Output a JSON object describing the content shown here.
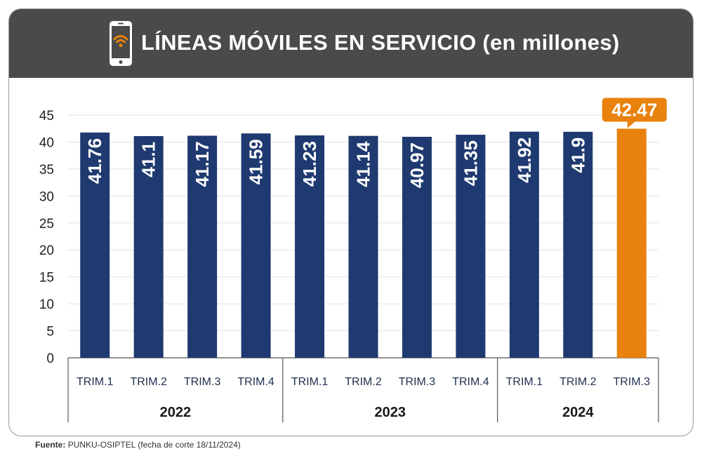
{
  "title": "LÍNEAS MÓVILES EN SERVICIO (en millones)",
  "footer": {
    "source_label": "Fuente:",
    "source_text": "PUNKU-OSIPTEL (fecha de corte 18/11/2024)"
  },
  "colors": {
    "bar": "#1f3a70",
    "highlight": "#e8820c",
    "header": "#4a4a4a"
  },
  "icon": "smartphone-wifi-icon",
  "chart_data": {
    "type": "bar",
    "title": "LÍNEAS MÓVILES EN SERVICIO (en millones)",
    "xlabel": "",
    "ylabel": "",
    "ylim": [
      0,
      45
    ],
    "yticks": [
      0,
      5,
      10,
      15,
      20,
      25,
      30,
      35,
      40,
      45
    ],
    "grid": true,
    "categories": [
      "TRIM.1",
      "TRIM.2",
      "TRIM.3",
      "TRIM.4",
      "TRIM.1",
      "TRIM.2",
      "TRIM.3",
      "TRIM.4",
      "TRIM.1",
      "TRIM.2",
      "TRIM.3"
    ],
    "groups": [
      {
        "label": "2022",
        "count": 4
      },
      {
        "label": "2023",
        "count": 4
      },
      {
        "label": "2024",
        "count": 3
      }
    ],
    "values": [
      41.76,
      41.1,
      41.17,
      41.59,
      41.23,
      41.14,
      40.97,
      41.35,
      41.92,
      41.9,
      42.47
    ],
    "value_labels": [
      "41.76",
      "41.1",
      "41.17",
      "41.59",
      "41.23",
      "41.14",
      "40.97",
      "41.35",
      "41.92",
      "41.9",
      "42.47"
    ],
    "highlight_index": 10
  }
}
